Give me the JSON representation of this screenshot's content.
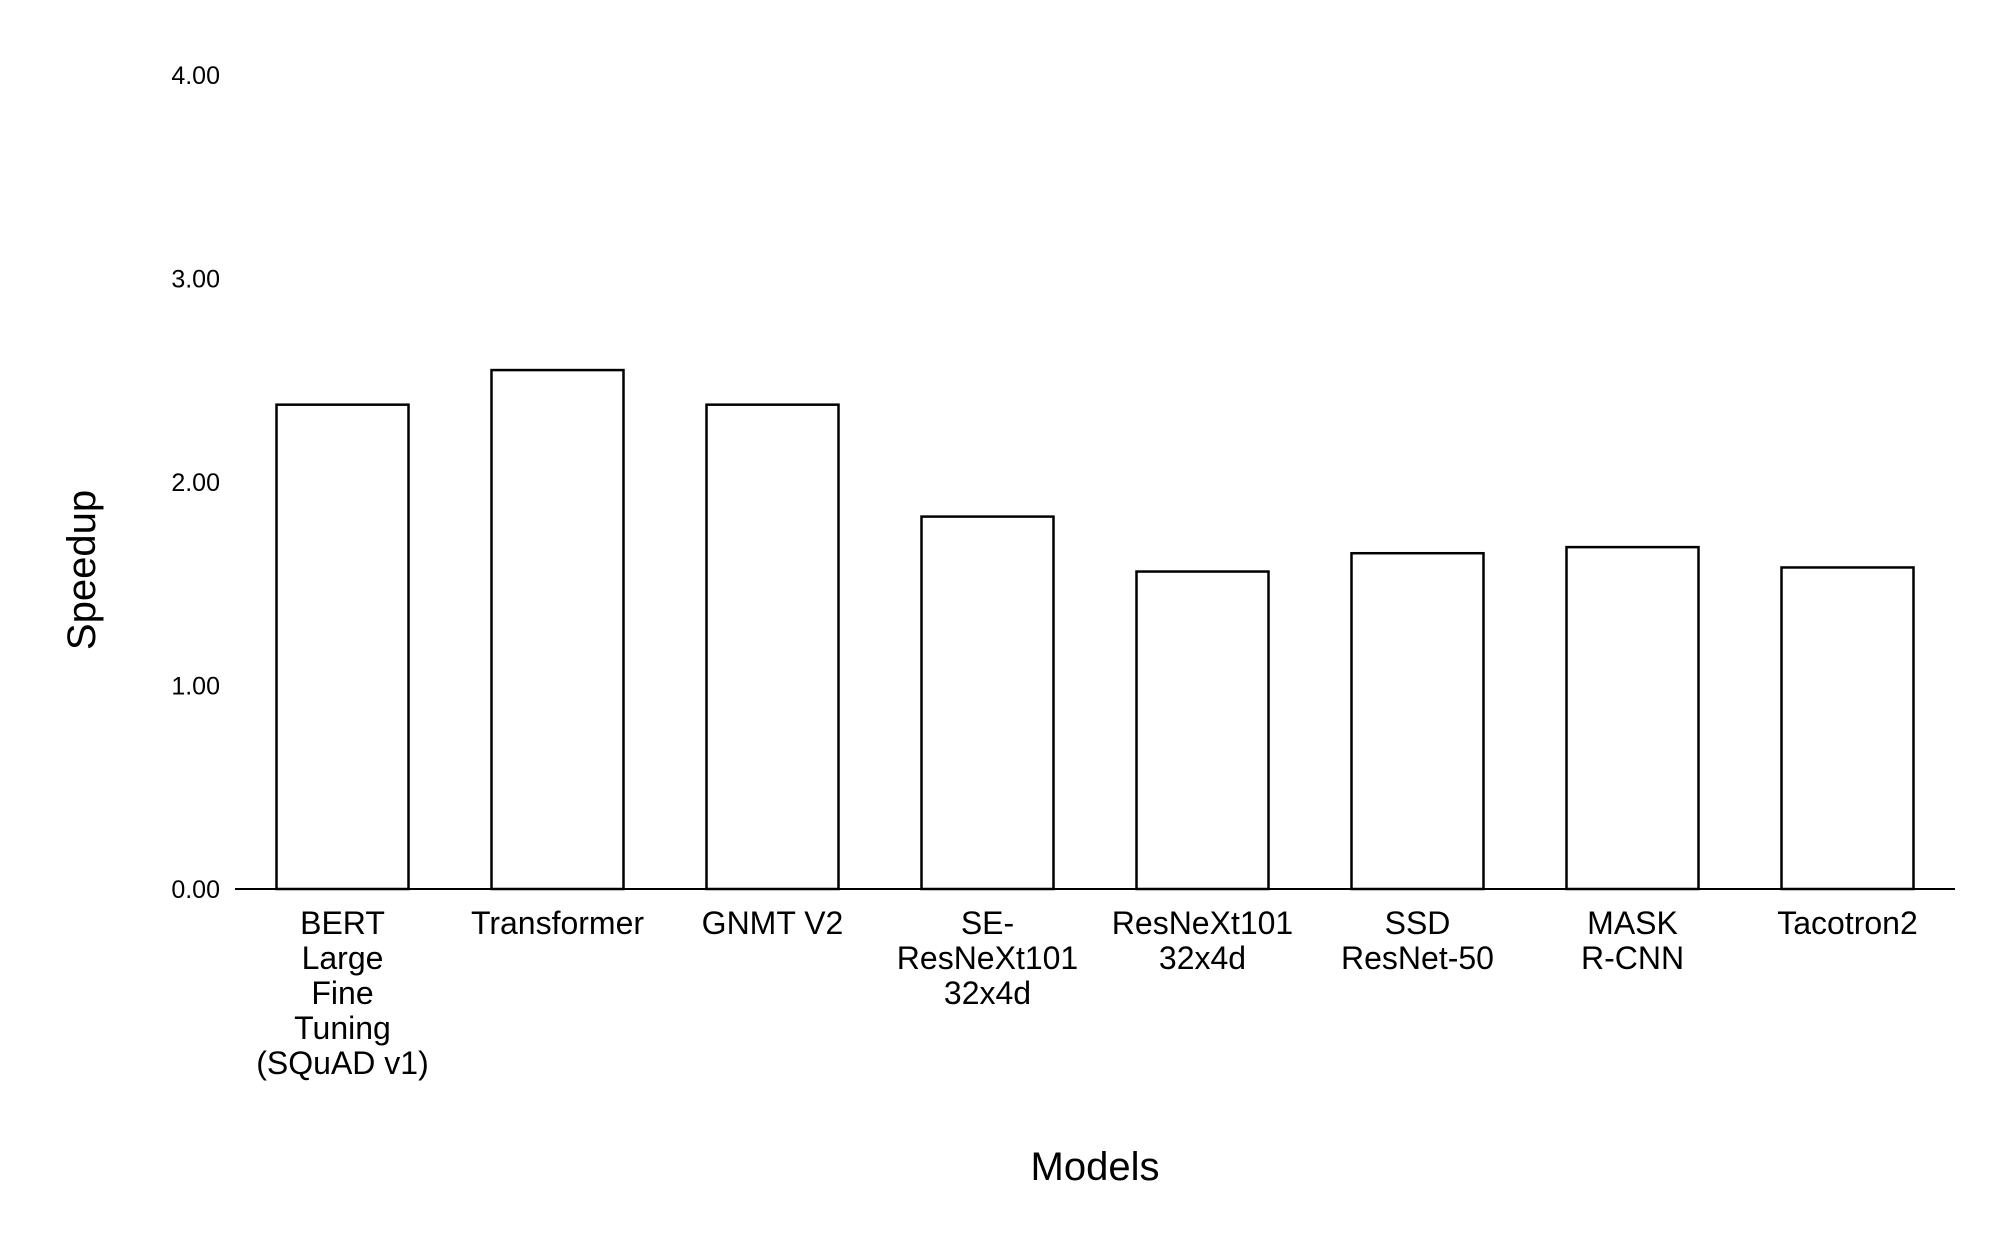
{
  "chart_data": {
    "type": "bar",
    "xlabel": "Models",
    "ylabel": "Speedup",
    "ylim": [
      0,
      4
    ],
    "yticks": [
      "0.00",
      "1.00",
      "2.00",
      "3.00",
      "4.00"
    ],
    "grid": false,
    "categories": [
      "BERT Large Fine Tuning (SQuAD v1)",
      "Transformer",
      "GNMT V2",
      "SE-ResNeXt101 32x4d",
      "ResNeXt101 32x4d",
      "SSD ResNet-50",
      "MASK R-CNN",
      "Tacotron2"
    ],
    "category_label_lines": [
      [
        "BERT",
        "Large",
        "Fine",
        "Tuning",
        "(SQuAD v1)"
      ],
      [
        "Transformer"
      ],
      [
        "GNMT V2"
      ],
      [
        "SE-",
        "ResNeXt101",
        "32x4d"
      ],
      [
        "ResNeXt101",
        "32x4d"
      ],
      [
        "SSD",
        "ResNet-50"
      ],
      [
        "MASK",
        "R-CNN"
      ],
      [
        "Tacotron2"
      ]
    ],
    "values": [
      2.38,
      2.55,
      2.38,
      1.83,
      1.56,
      1.65,
      1.68,
      1.58
    ],
    "colors": {
      "bar_fill": "#ffffff",
      "bar_stroke": "#000000",
      "axis": "#000000"
    }
  }
}
